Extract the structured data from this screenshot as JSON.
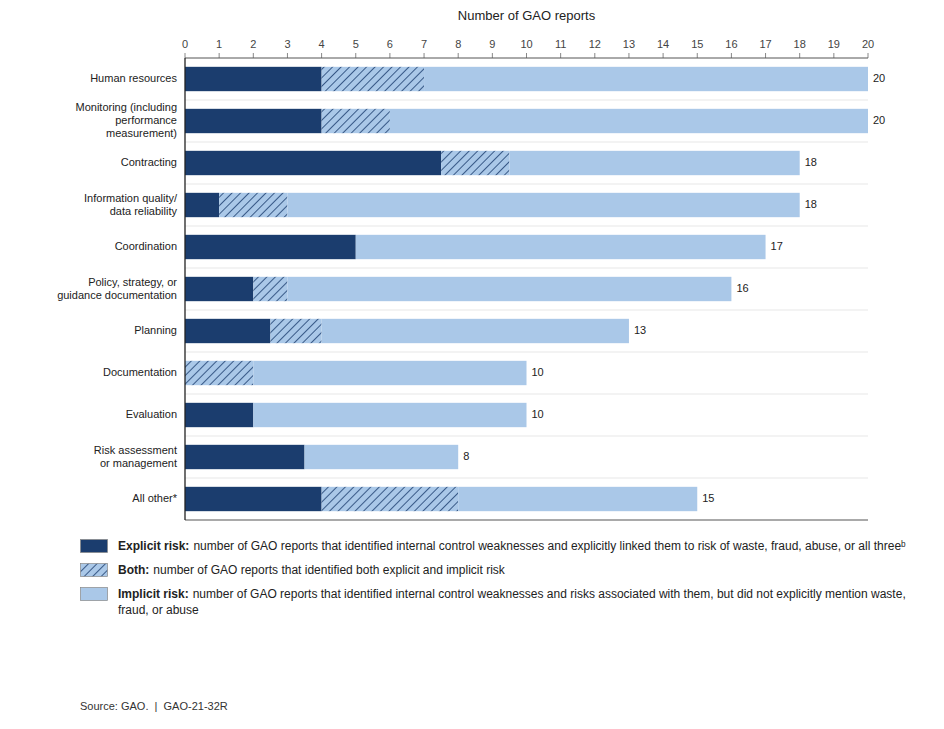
{
  "chart_data": {
    "type": "bar",
    "orientation": "horizontal",
    "stacked": true,
    "xlabel": "Number of GAO reports",
    "categories": [
      "Human resources",
      "Monitoring (including\nperformance\nmeasurement)",
      "Contracting",
      "Information quality/\ndata reliability",
      "Coordination",
      "Policy, strategy, or\nguidance documentation",
      "Planning",
      "Documentation",
      "Evaluation",
      "Risk assessment\nor management",
      "All other*"
    ],
    "series": [
      {
        "name": "Explicit risk:",
        "description": "number of GAO reports that identified internal control weaknesses and explicitly linked them to risk of waste, fraud, abuse, or all threeᵇ",
        "color": "#1b3d6e",
        "values": [
          4,
          4,
          7.5,
          1,
          5,
          2,
          2.5,
          0,
          2,
          3.5,
          4
        ]
      },
      {
        "name": "Both:",
        "description": "number of GAO reports that identified both explicit and implicit risk",
        "color": "#aac8e8",
        "line_style": "hatched",
        "values": [
          3,
          2,
          2,
          2,
          0,
          1,
          1.5,
          2,
          0,
          0,
          4
        ]
      },
      {
        "name": "Implicit risk:",
        "description": "number of GAO reports that identified internal control weaknesses and risks associated with them, but did not explicitly mention waste, fraud, or abuse",
        "color": "#aac8e8",
        "values": [
          13,
          14,
          8.5,
          15,
          12,
          13,
          9,
          8,
          8,
          4.5,
          7
        ]
      }
    ],
    "totals": [
      20,
      20,
      18,
      18,
      17,
      16,
      13,
      10,
      10,
      8,
      15
    ],
    "xlim": [
      0,
      20
    ],
    "xticks": [
      0,
      1,
      2,
      3,
      4,
      5,
      6,
      7,
      8,
      9,
      10,
      11,
      12,
      13,
      14,
      15,
      16,
      17,
      18,
      19,
      20
    ],
    "grid": false,
    "legend": "bottom",
    "source": "Source: GAO.  |  GAO-21-32R"
  }
}
